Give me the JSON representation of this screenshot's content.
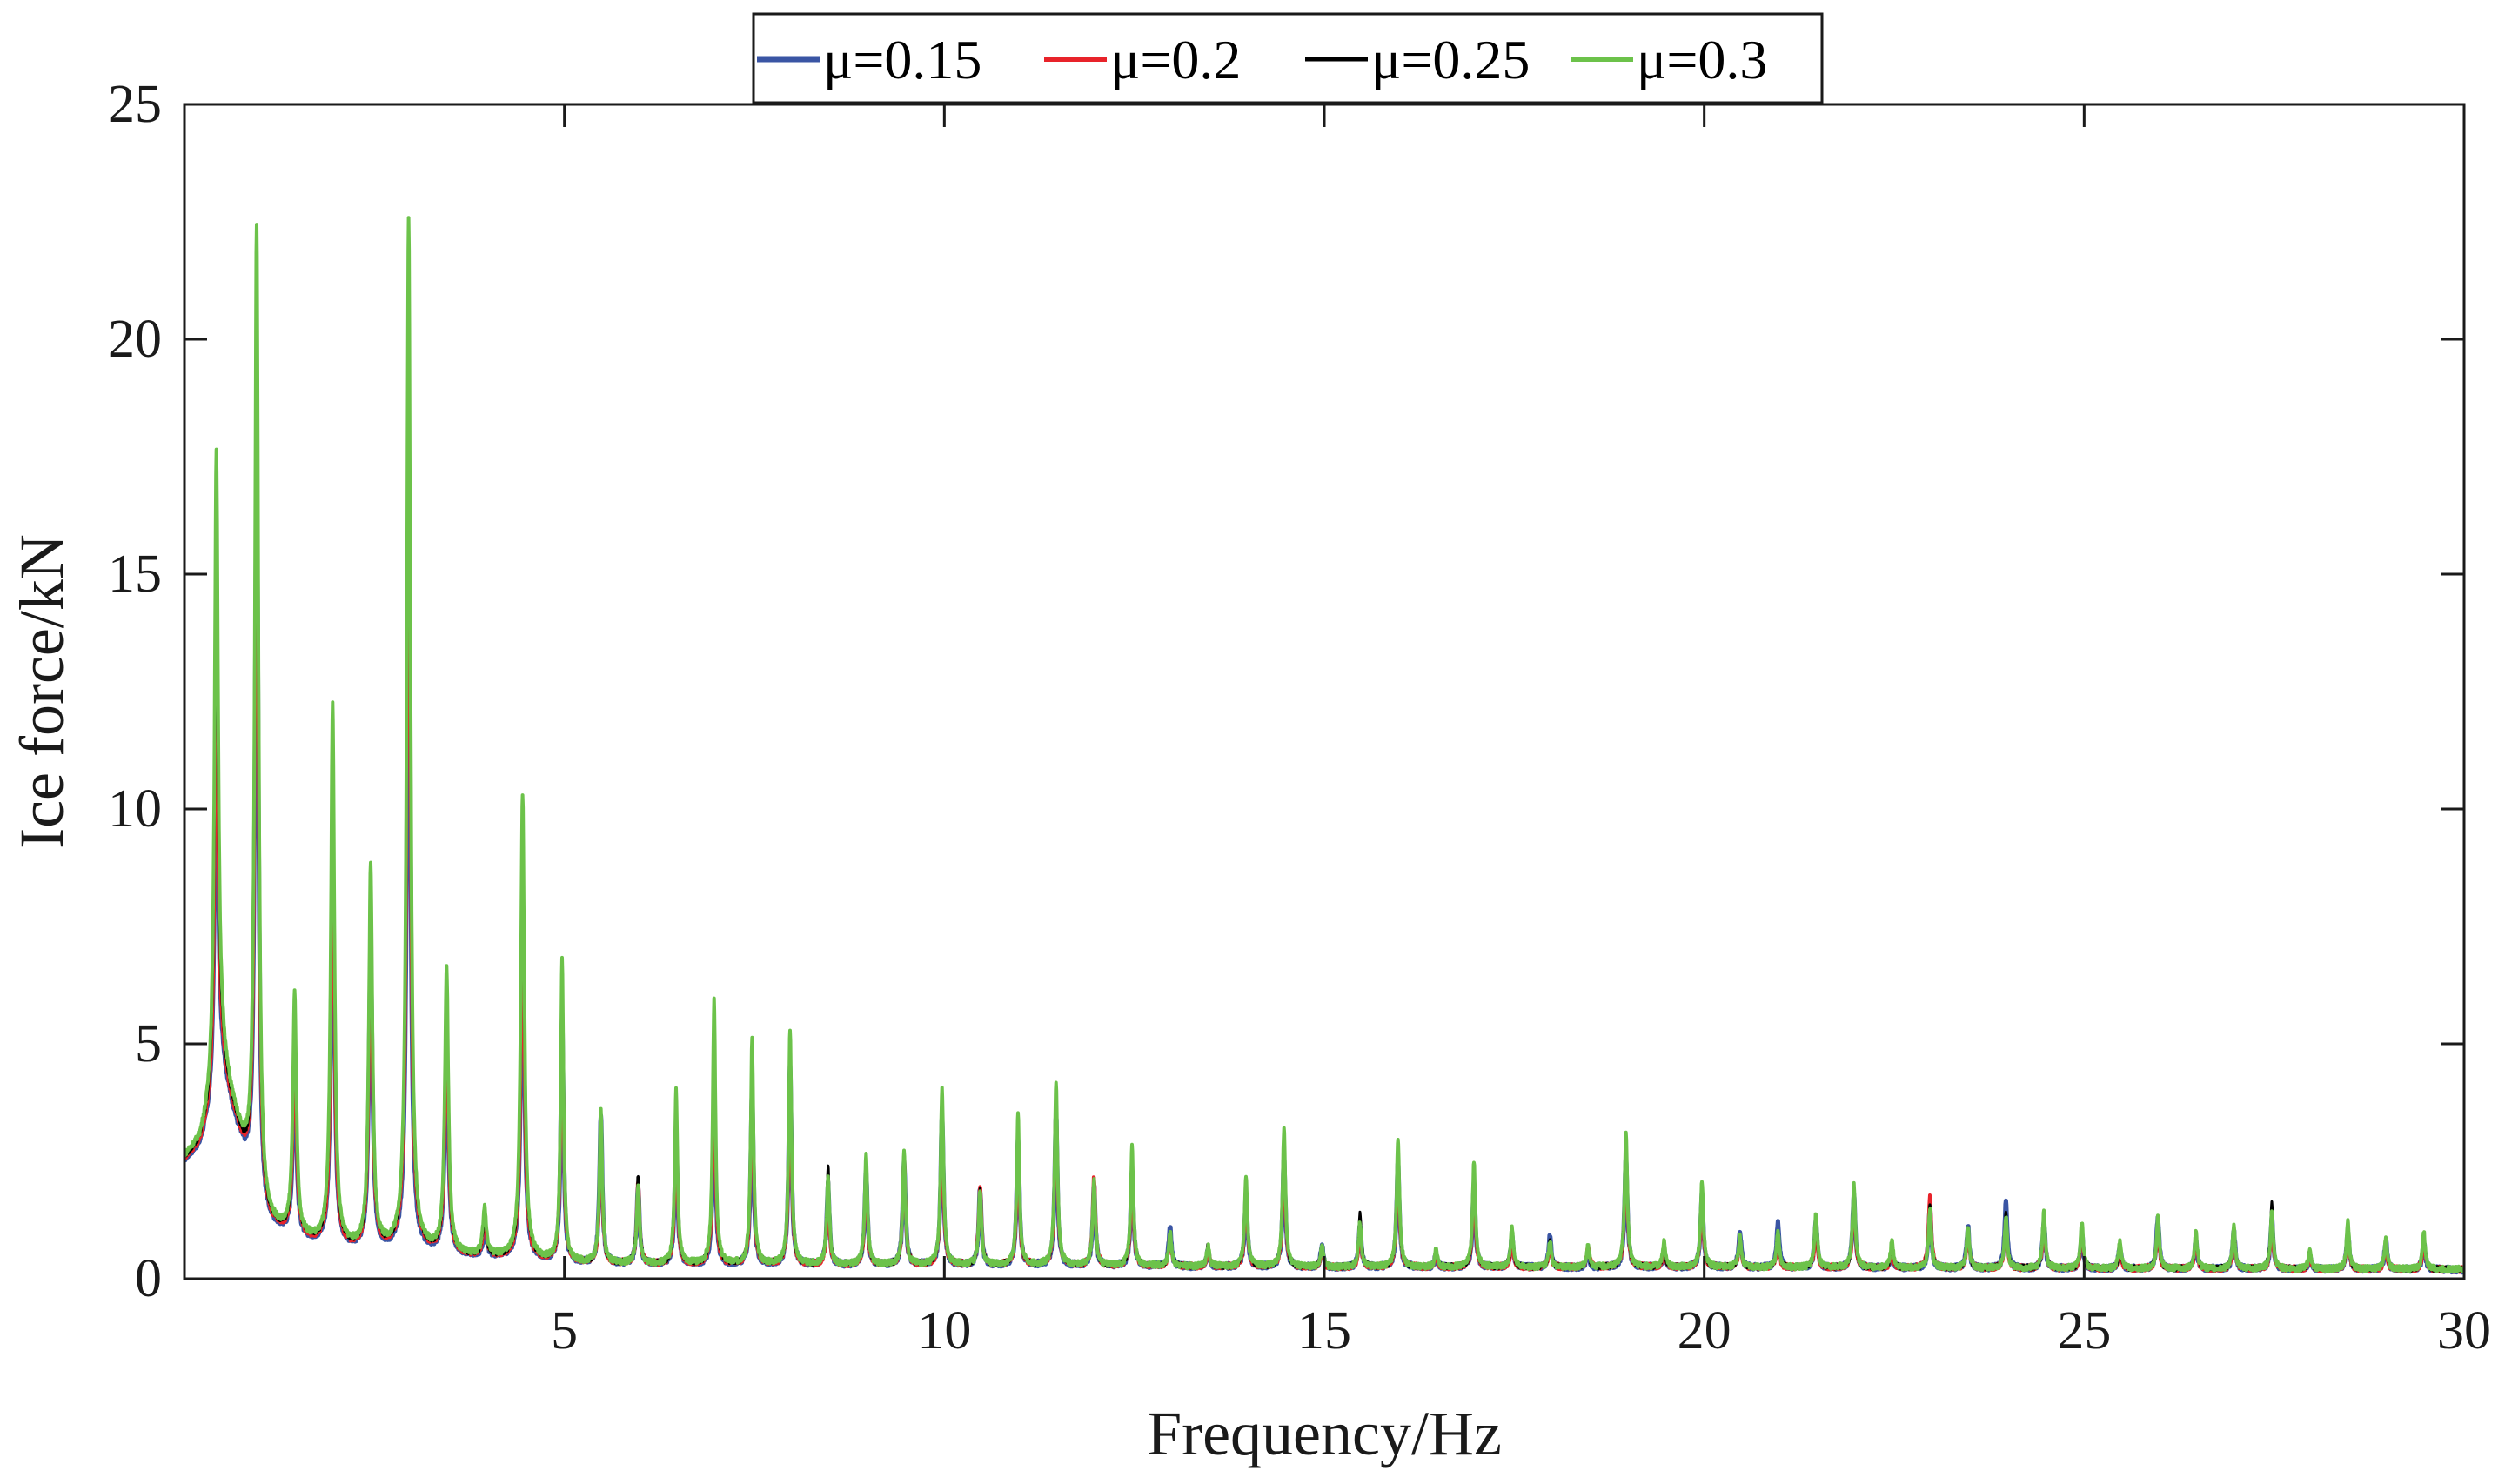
{
  "chart_data": {
    "type": "line",
    "xlabel": "Frequency/Hz",
    "ylabel": "Ice  force/kN",
    "xlim": [
      0,
      30
    ],
    "ylim": [
      0,
      25
    ],
    "x_ticks": [
      5,
      10,
      15,
      20,
      25,
      30
    ],
    "y_ticks": [
      0,
      5,
      10,
      15,
      20,
      25
    ],
    "grid": false,
    "legend_position": "top-center",
    "baseline": {
      "x": [
        0.0,
        0.2,
        0.35,
        0.5,
        1.0,
        1.5,
        2.0,
        3.0,
        4.0,
        5.0,
        7.0,
        10.0,
        15.0,
        20.0,
        25.0,
        30.0
      ],
      "y": [
        2.6,
        2.9,
        3.6,
        4.5,
        1.2,
        0.9,
        0.7,
        0.6,
        0.5,
        0.35,
        0.3,
        0.3,
        0.25,
        0.25,
        0.22,
        0.2
      ]
    },
    "peaks": {
      "x": [
        0.42,
        0.95,
        1.45,
        1.95,
        2.45,
        2.95,
        3.45,
        3.95,
        4.45,
        4.97,
        5.48,
        5.97,
        6.47,
        6.97,
        7.47,
        7.97,
        8.47,
        8.97,
        9.47,
        9.97,
        10.47,
        10.97,
        11.47,
        11.97,
        12.47,
        12.97,
        13.47,
        13.97,
        14.47,
        14.97,
        15.47,
        15.97,
        16.47,
        16.97,
        17.47,
        17.97,
        18.47,
        18.97,
        19.47,
        19.97,
        20.47,
        20.97,
        21.47,
        21.97,
        22.47,
        22.97,
        23.47,
        23.97,
        24.47,
        24.97,
        25.47,
        25.97,
        26.47,
        26.97,
        27.47,
        27.97,
        28.47,
        28.97,
        29.47
      ]
    },
    "series": [
      {
        "name": "μ=0.15",
        "color": "#3a55a4",
        "stroke_width": 5,
        "scale": 0.97,
        "peak_values": [
          12.0,
          17.5,
          4.5,
          9.0,
          7.0,
          16.5,
          5.0,
          1.0,
          7.5,
          5.5,
          3.5,
          2.0,
          3.0,
          4.0,
          4.0,
          4.5,
          2.0,
          2.3,
          2.5,
          3.5,
          1.9,
          3.0,
          3.5,
          2.0,
          2.3,
          1.1,
          0.6,
          1.8,
          2.6,
          0.7,
          1.1,
          2.5,
          0.5,
          2.0,
          0.9,
          0.9,
          0.5,
          2.6,
          0.6,
          1.8,
          1.0,
          1.2,
          1.2,
          1.8,
          0.6,
          1.5,
          1.1,
          1.6,
          1.2,
          1.0,
          0.7,
          1.3,
          0.8,
          1.0,
          1.3,
          0.5,
          1.0,
          0.8,
          0.8
        ]
      },
      {
        "name": "μ=0.2",
        "color": "#e8232a",
        "stroke_width": 4,
        "scale": 0.98,
        "peak_values": [
          13.0,
          19.0,
          5.0,
          9.5,
          7.5,
          19.0,
          5.5,
          1.2,
          8.0,
          6.0,
          3.2,
          2.1,
          3.3,
          4.5,
          4.5,
          4.5,
          1.8,
          2.3,
          2.6,
          3.5,
          2.0,
          3.0,
          3.8,
          2.2,
          2.4,
          0.9,
          0.6,
          1.9,
          2.7,
          0.6,
          1.0,
          2.6,
          0.5,
          2.1,
          0.8,
          0.7,
          0.7,
          2.7,
          0.6,
          1.7,
          0.8,
          0.8,
          1.1,
          1.7,
          0.6,
          1.8,
          1.0,
          1.2,
          1.2,
          1.0,
          0.6,
          1.1,
          0.8,
          1.0,
          1.2,
          0.5,
          1.0,
          0.7,
          0.8
        ]
      },
      {
        "name": "μ=0.25",
        "color": "#000000",
        "stroke_width": 3,
        "scale": 0.99,
        "peak_values": [
          15.0,
          20.0,
          5.5,
          11.0,
          8.0,
          20.5,
          6.0,
          1.3,
          9.0,
          6.5,
          3.3,
          2.2,
          3.6,
          5.3,
          4.8,
          4.9,
          2.4,
          2.4,
          2.7,
          3.8,
          1.9,
          3.2,
          3.9,
          2.0,
          2.5,
          1.0,
          0.7,
          2.0,
          2.9,
          0.7,
          1.4,
          2.7,
          0.6,
          2.3,
          1.0,
          0.8,
          0.6,
          2.9,
          0.7,
          1.9,
          0.9,
          1.0,
          1.3,
          1.8,
          0.7,
          1.6,
          1.1,
          1.4,
          1.3,
          1.1,
          0.7,
          1.2,
          0.9,
          1.1,
          1.6,
          0.6,
          1.1,
          0.8,
          0.9
        ]
      },
      {
        "name": "μ=0.3",
        "color": "#6cc24a",
        "stroke_width": 4,
        "scale": 1.0,
        "peak_values": [
          17.6,
          22.4,
          6.0,
          12.2,
          8.8,
          22.6,
          6.6,
          1.5,
          10.3,
          6.8,
          3.6,
          2.0,
          4.0,
          5.9,
          5.1,
          5.3,
          2.2,
          2.6,
          2.7,
          4.1,
          1.9,
          3.5,
          4.2,
          2.1,
          2.8,
          1.0,
          0.7,
          2.2,
          3.2,
          0.7,
          1.2,
          3.0,
          0.6,
          2.5,
          1.1,
          0.8,
          0.7,
          3.1,
          0.8,
          2.1,
          0.9,
          1.0,
          1.4,
          2.0,
          0.8,
          1.5,
          1.1,
          1.3,
          1.4,
          1.2,
          0.8,
          1.3,
          1.0,
          1.1,
          1.4,
          0.6,
          1.2,
          0.9,
          1.0
        ]
      }
    ]
  }
}
